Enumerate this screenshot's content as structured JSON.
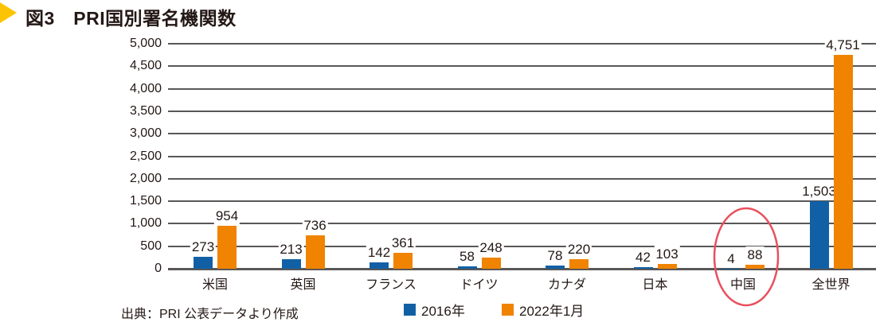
{
  "figure": {
    "title": "図3　PRI国別署名機関数",
    "source": "出典：PRI 公表データより作成"
  },
  "legend": {
    "items": [
      {
        "label": "2016年",
        "color": "#1160A5"
      },
      {
        "label": "2022年1月",
        "color": "#F08300"
      }
    ]
  },
  "colors": {
    "bar_2016": "#1160A5",
    "bar_2022": "#F08300",
    "grid": "#595757",
    "text": "#231815",
    "title_marker": "#FCC400",
    "highlight_ellipse": "#E8505E"
  },
  "chart_data": {
    "type": "bar",
    "title": "図3　PRI国別署名機関数",
    "categories": [
      "米国",
      "英国",
      "フランス",
      "ドイツ",
      "カナダ",
      "日本",
      "中国",
      "全世界"
    ],
    "series": [
      {
        "name": "2016年",
        "color": "#1160A5",
        "values": [
          273,
          213,
          142,
          58,
          78,
          42,
          4,
          1503
        ]
      },
      {
        "name": "2022年1月",
        "color": "#F08300",
        "values": [
          954,
          736,
          361,
          248,
          220,
          103,
          88,
          4751
        ]
      }
    ],
    "xlabel": "",
    "ylabel": "",
    "ylim": [
      0,
      5000
    ],
    "ytick_interval": 500,
    "grid": true,
    "value_labels": true,
    "legend_position": "bottom-center",
    "source": "出典：PRI 公表データより作成",
    "annotations": [
      {
        "type": "ellipse",
        "category": "中国",
        "color": "#E8505E",
        "note": "red ellipse highlighting 中国 values 4 and 88"
      }
    ]
  }
}
